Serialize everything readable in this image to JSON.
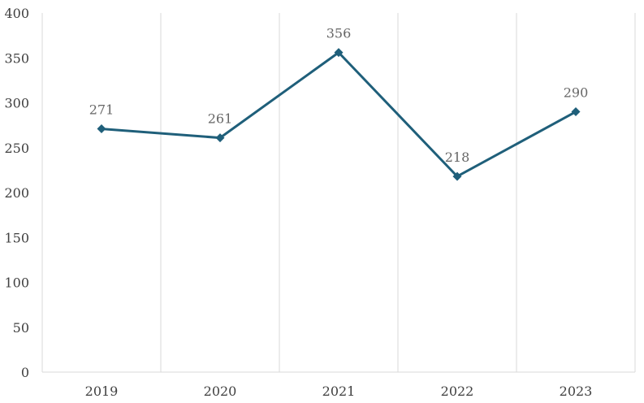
{
  "chart_data": {
    "type": "line",
    "title": "",
    "xlabel": "",
    "ylabel": "",
    "categories": [
      "2019",
      "2020",
      "2021",
      "2022",
      "2023"
    ],
    "series": [
      {
        "values": [
          271,
          261,
          356,
          218,
          290
        ],
        "color": "#1f5f7a",
        "marker": "diamond",
        "data_labels": true
      }
    ],
    "ylim": [
      0,
      400
    ],
    "yticks": [
      0,
      50,
      100,
      150,
      200,
      250,
      300,
      350,
      400
    ],
    "grid": {
      "vertical_category_lines": true,
      "horizontal_lines": false,
      "color": "#d9d9d9"
    },
    "legend": "none",
    "data_label_color": "#666666",
    "axis_label_color": "#404040"
  }
}
